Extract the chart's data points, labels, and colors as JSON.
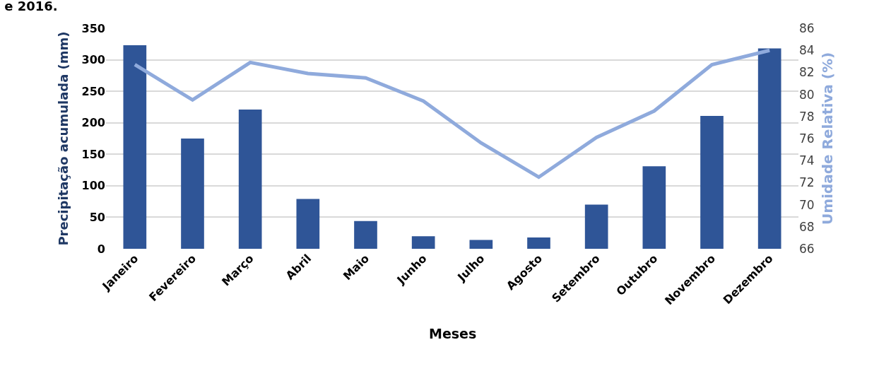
{
  "chart_data": {
    "type": "bar",
    "title": "e 2016.",
    "xlabel": "Meses",
    "ylabel": "Precipitação acumulada (mm)",
    "y2label": "Umidade Relativa (%)",
    "categories": [
      "Janeiro",
      "Fevereiro",
      "Março",
      "Abril",
      "Maio",
      "Junho",
      "Julho",
      "Agosto",
      "Setembro",
      "Outubro",
      "Novembro",
      "Dezembro"
    ],
    "series": [
      {
        "color": "#2f5597",
        "values": [
          323,
          175,
          221,
          79,
          44,
          20,
          14,
          18,
          70,
          131,
          211,
          318
        ]
      },
      {
        "type": "line",
        "axis": "y2",
        "color": "#8faadc",
        "values": [
          82.7,
          79.5,
          82.9,
          81.9,
          81.5,
          79.4,
          75.6,
          72.5,
          76.1,
          78.5,
          82.7,
          84.0
        ]
      }
    ],
    "ylim": [
      0,
      350
    ],
    "yticks": [
      0,
      50,
      100,
      150,
      200,
      250,
      300,
      350
    ],
    "y2lim": [
      66,
      86
    ],
    "y2ticks": [
      66,
      68,
      70,
      72,
      74,
      76,
      78,
      80,
      82,
      84,
      86
    ],
    "grid": "y",
    "legend": false,
    "marker": "none",
    "line_style": "solid"
  }
}
